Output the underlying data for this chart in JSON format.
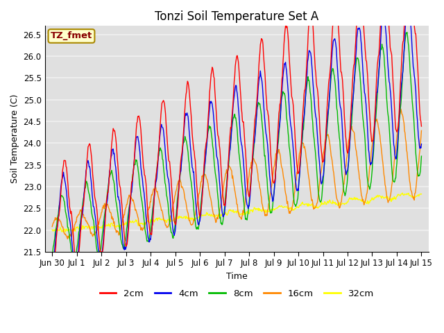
{
  "title": "Tonzi Soil Temperature Set A",
  "xlabel": "Time",
  "ylabel": "Soil Temperature (C)",
  "xlim": [
    -0.3,
    15.3
  ],
  "ylim": [
    21.5,
    26.7
  ],
  "yticks": [
    21.5,
    22.0,
    22.5,
    23.0,
    23.5,
    24.0,
    24.5,
    25.0,
    25.5,
    26.0,
    26.5
  ],
  "xtick_labels": [
    "Jun 30",
    "Jul 1",
    "Jul 2",
    "Jul 3",
    "Jul 4",
    "Jul 5",
    "Jul 6",
    "Jul 7",
    "Jul 8",
    "Jul 9",
    "Jul 10",
    "Jul 11",
    "Jul 12",
    "Jul 13",
    "Jul 14",
    "Jul 15"
  ],
  "xtick_positions": [
    0,
    1,
    2,
    3,
    4,
    5,
    6,
    7,
    8,
    9,
    10,
    11,
    12,
    13,
    14,
    15
  ],
  "colors": {
    "2cm": "#ff0000",
    "4cm": "#0000ee",
    "8cm": "#00bb00",
    "16cm": "#ff8800",
    "32cm": "#ffff00"
  },
  "legend_label": "TZ_fmet",
  "legend_bg": "#ffffcc",
  "legend_edge": "#aa8800",
  "legend_text": "#880000",
  "bg_color": "#e0e0e0",
  "grid_color": "#f0f0f0",
  "title_fontsize": 12,
  "axis_fontsize": 9,
  "tick_fontsize": 8.5,
  "figsize": [
    6.4,
    4.8
  ],
  "dpi": 100,
  "trend": {
    "2cm_base": 22.2,
    "2cm_slope": 0.29,
    "4cm_base": 22.05,
    "4cm_slope": 0.24,
    "8cm_base": 21.95,
    "8cm_slope": 0.2,
    "16cm_base": 22.0,
    "16cm_slope": 0.12,
    "32cm_base": 21.97,
    "32cm_slope": 0.057
  },
  "amp": {
    "2cm_base": 1.25,
    "2cm_growth": 0.055,
    "4cm_base": 1.1,
    "4cm_growth": 0.045,
    "8cm_base": 0.75,
    "8cm_growth": 0.065,
    "16cm_base": 0.22,
    "16cm_growth": 0.055,
    "32cm_base": 0.02,
    "32cm_growth": 0.002
  },
  "phase": {
    "2cm": -1.6,
    "4cm": -1.3,
    "8cm": -0.9,
    "16cm": 0.5,
    "32cm": 0.0
  }
}
